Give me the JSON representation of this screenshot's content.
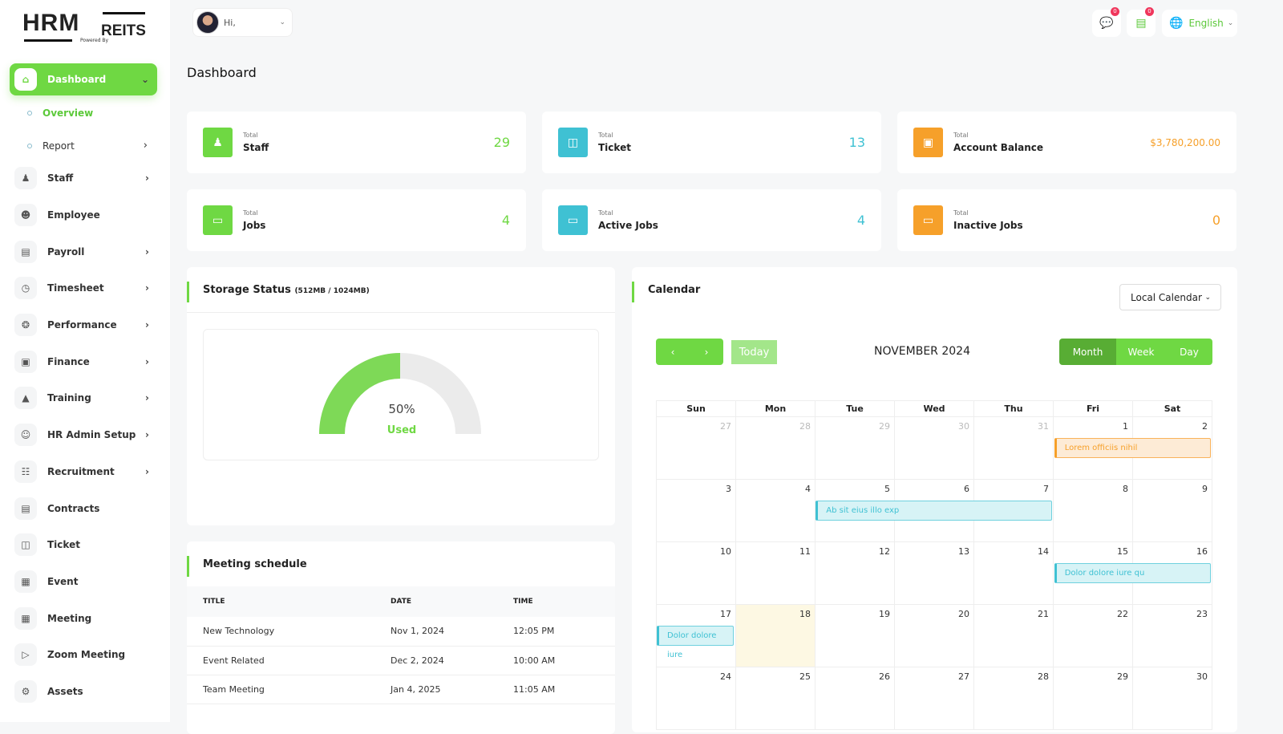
{
  "brand": {
    "logo_text": "HRM",
    "logo_suffix": "REITS",
    "powered": "Powered By"
  },
  "header": {
    "greeting": "Hi,",
    "chat_badge": "0",
    "msg_badge": "0",
    "language": "English"
  },
  "sidebar": {
    "items": [
      {
        "label": "Dashboard",
        "icon": "home-icon",
        "chevron": true,
        "active": true
      },
      {
        "label": "Staff",
        "icon": "users-icon",
        "chevron": true
      },
      {
        "label": "Employee",
        "icon": "user-icon",
        "chevron": false
      },
      {
        "label": "Payroll",
        "icon": "receipt-icon",
        "chevron": true
      },
      {
        "label": "Timesheet",
        "icon": "clock-icon",
        "chevron": true
      },
      {
        "label": "Performance",
        "icon": "target-icon",
        "chevron": true
      },
      {
        "label": "Finance",
        "icon": "wallet-icon",
        "chevron": true
      },
      {
        "label": "Training",
        "icon": "graduation-cap-icon",
        "chevron": true
      },
      {
        "label": "HR Admin Setup",
        "icon": "user-plus-icon",
        "chevron": true
      },
      {
        "label": "Recruitment",
        "icon": "clipboard-icon",
        "chevron": true
      },
      {
        "label": "Contracts",
        "icon": "contract-icon",
        "chevron": false
      },
      {
        "label": "Ticket",
        "icon": "ticket-icon",
        "chevron": false
      },
      {
        "label": "Event",
        "icon": "calendar-icon",
        "chevron": false
      },
      {
        "label": "Meeting",
        "icon": "calendar-clock-icon",
        "chevron": false
      },
      {
        "label": "Zoom Meeting",
        "icon": "video-icon",
        "chevron": false
      },
      {
        "label": "Assets",
        "icon": "gear-icon",
        "chevron": false
      }
    ],
    "subitems": [
      {
        "label": "Overview",
        "active": true
      },
      {
        "label": "Report",
        "chevron": true
      }
    ]
  },
  "page_title": "Dashboard",
  "cards": [
    {
      "small": "Total",
      "label": "Staff",
      "value": "29",
      "color": "#6fd843",
      "icon": "users-icon"
    },
    {
      "small": "Total",
      "label": "Ticket",
      "value": "13",
      "color": "#3fc1d3",
      "icon": "ticket-icon"
    },
    {
      "small": "Total",
      "label": "Account Balance",
      "value": "$3,780,200.00",
      "color": "#f6a02a",
      "icon": "wallet-icon"
    },
    {
      "small": "Total",
      "label": "Jobs",
      "value": "4",
      "color": "#6fd843",
      "icon": "cast-icon"
    },
    {
      "small": "Total",
      "label": "Active Jobs",
      "value": "4",
      "color": "#3fc1d3",
      "icon": "cast-icon"
    },
    {
      "small": "Total",
      "label": "Inactive Jobs",
      "value": "0",
      "color": "#f6a02a",
      "icon": "cast-icon"
    }
  ],
  "storage": {
    "title": "Storage Status",
    "detail": "(512MB / 1024MB)",
    "percent": 50,
    "percent_label": "50%",
    "used_label": "Used"
  },
  "meetings": {
    "title": "Meeting schedule",
    "columns": [
      "TITLE",
      "DATE",
      "TIME"
    ],
    "rows": [
      [
        "New Technology",
        "Nov 1, 2024",
        "12:05 PM"
      ],
      [
        "Event Related",
        "Dec 2, 2024",
        "10:00 AM"
      ],
      [
        "Team Meeting",
        "Jan 4, 2025",
        "11:05 AM"
      ]
    ]
  },
  "calendar": {
    "title": "Calendar",
    "select": "Local Calendar",
    "today": "Today",
    "month_label": "NOVEMBER 2024",
    "views": [
      "Month",
      "Week",
      "Day"
    ],
    "weekdays": [
      "Sun",
      "Mon",
      "Tue",
      "Wed",
      "Thu",
      "Fri",
      "Sat"
    ],
    "weeks": [
      [
        "27",
        "28",
        "29",
        "30",
        "31",
        "1",
        "2"
      ],
      [
        "3",
        "4",
        "5",
        "6",
        "7",
        "8",
        "9"
      ],
      [
        "10",
        "11",
        "12",
        "13",
        "14",
        "15",
        "16"
      ],
      [
        "17",
        "18",
        "19",
        "20",
        "21",
        "22",
        "23"
      ],
      [
        "24",
        "25",
        "26",
        "27",
        "28",
        "29",
        "30"
      ]
    ],
    "today_date": "18",
    "events": [
      {
        "title": "Lorem officiis nihil",
        "week": 0,
        "start": 5,
        "span": 2,
        "color": "orange"
      },
      {
        "title": "Ab sit eius illo exp",
        "week": 1,
        "start": 2,
        "span": 3,
        "color": "cyan"
      },
      {
        "title": "Dolor dolore iure qu",
        "week": 2,
        "start": 5,
        "span": 2,
        "color": "cyan"
      },
      {
        "title": "Dolor dolore iure",
        "week": 3,
        "start": 0,
        "span": 1,
        "color": "cyan"
      }
    ]
  }
}
